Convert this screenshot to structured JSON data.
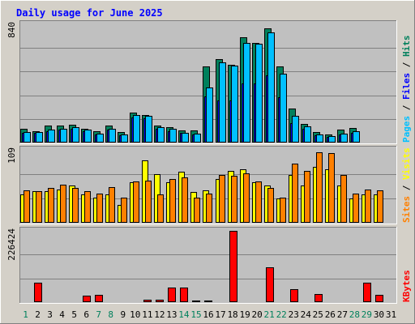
{
  "chart_data": {
    "type": "bar",
    "title": "Daily usage for June 2025",
    "days": [
      "1",
      "2",
      "3",
      "4",
      "5",
      "6",
      "7",
      "8",
      "9",
      "10",
      "11",
      "12",
      "13",
      "14",
      "15",
      "16",
      "17",
      "18",
      "19",
      "20",
      "21",
      "22",
      "23",
      "24",
      "25",
      "26",
      "27",
      "28",
      "29",
      "30",
      "31"
    ],
    "weekend_days": [
      1,
      7,
      8,
      14,
      15,
      21,
      22,
      28,
      29
    ],
    "colors": {
      "hits": "#00805c",
      "files": "#0000ff",
      "pages": "#00c0ff",
      "visits": "#ffff00",
      "sites": "#ff8000",
      "kbytes": "#ff0000",
      "weekend_label": "#00805c",
      "weekday_label": "#000000",
      "title": "#0000ff",
      "panel_bg": "#c0c0c0",
      "frame_bg": "#d4d0c8"
    },
    "panels": [
      {
        "name": "hits-files-pages",
        "ymax": 840,
        "ymax_label": "840",
        "side_labels": [
          {
            "text": "Pages",
            "color": "#00c0ff"
          },
          {
            "text": " / ",
            "color": "#000000"
          },
          {
            "text": "Files",
            "color": "#0000ff"
          },
          {
            "text": " / ",
            "color": "#000000"
          },
          {
            "text": "Hits",
            "color": "#00805c"
          }
        ],
        "series": [
          {
            "name": "Hits",
            "color": "#00805c",
            "values": [
              100,
              82,
              120,
              120,
              125,
              100,
              80,
              120,
              75,
              210,
              195,
              120,
              110,
              85,
              85,
              540,
              590,
              555,
              750,
              710,
              810,
              540,
              240,
              135,
              75,
              55,
              90,
              105,
              0,
              0,
              0
            ]
          },
          {
            "name": "Files",
            "color": "#0000ff",
            "values": [
              70,
              70,
              80,
              90,
              100,
              80,
              60,
              90,
              50,
              180,
              170,
              100,
              80,
              70,
              60,
              330,
              300,
              300,
              420,
              420,
              480,
              320,
              140,
              100,
              50,
              40,
              60,
              70,
              0,
              0,
              0
            ]
          },
          {
            "name": "Pages",
            "color": "#00c0ff",
            "values": [
              75,
              72,
              90,
              100,
              110,
              90,
              65,
              100,
              60,
              195,
              190,
              110,
              100,
              70,
              65,
              390,
              570,
              545,
              710,
              700,
              780,
              490,
              190,
              115,
              55,
              45,
              65,
              80,
              0,
              0,
              0
            ]
          }
        ]
      },
      {
        "name": "visits-sites",
        "ymax": 109,
        "ymax_label": "109",
        "side_labels": [
          {
            "text": "Sites",
            "color": "#ff8000"
          },
          {
            "text": " / ",
            "color": "#000000"
          },
          {
            "text": "Visits",
            "color": "#ffff00"
          }
        ],
        "series": [
          {
            "name": "Visits",
            "color": "#ffff00",
            "values": [
              42,
              47,
              47,
              50,
              56,
              42,
              38,
              42,
              27,
              60,
              93,
              73,
              60,
              76,
              46,
              48,
              65,
              78,
              80,
              61,
              56,
              36,
              72,
              56,
              84,
              80,
              56,
              36,
              42,
              42,
              0
            ]
          },
          {
            "name": "Sites",
            "color": "#ff8000",
            "values": [
              49,
              47,
              52,
              57,
              52,
              47,
              43,
              53,
              38,
              62,
              63,
              42,
              65,
              68,
              38,
              43,
              72,
              70,
              74,
              62,
              52,
              38,
              88,
              78,
              105,
              104,
              72,
              44,
              50,
              49,
              0
            ]
          }
        ]
      },
      {
        "name": "kbytes",
        "ymax": 226424,
        "ymax_label": "226424",
        "side_labels": [
          {
            "text": "KBytes",
            "color": "#ff0000"
          }
        ],
        "series": [
          {
            "name": "KBytes",
            "color": "#ff0000",
            "values": [
              2000,
              62000,
              2000,
              2000,
              2000,
              20000,
              22000,
              2000,
              2000,
              2000,
              9000,
              7000,
              47000,
              47000,
              4000,
              4000,
              2000,
              226424,
              2000,
              2000,
              110000,
              2000,
              40000,
              2000,
              25000,
              2000,
              2000,
              2000,
              62000,
              23000,
              0
            ]
          }
        ]
      }
    ]
  }
}
